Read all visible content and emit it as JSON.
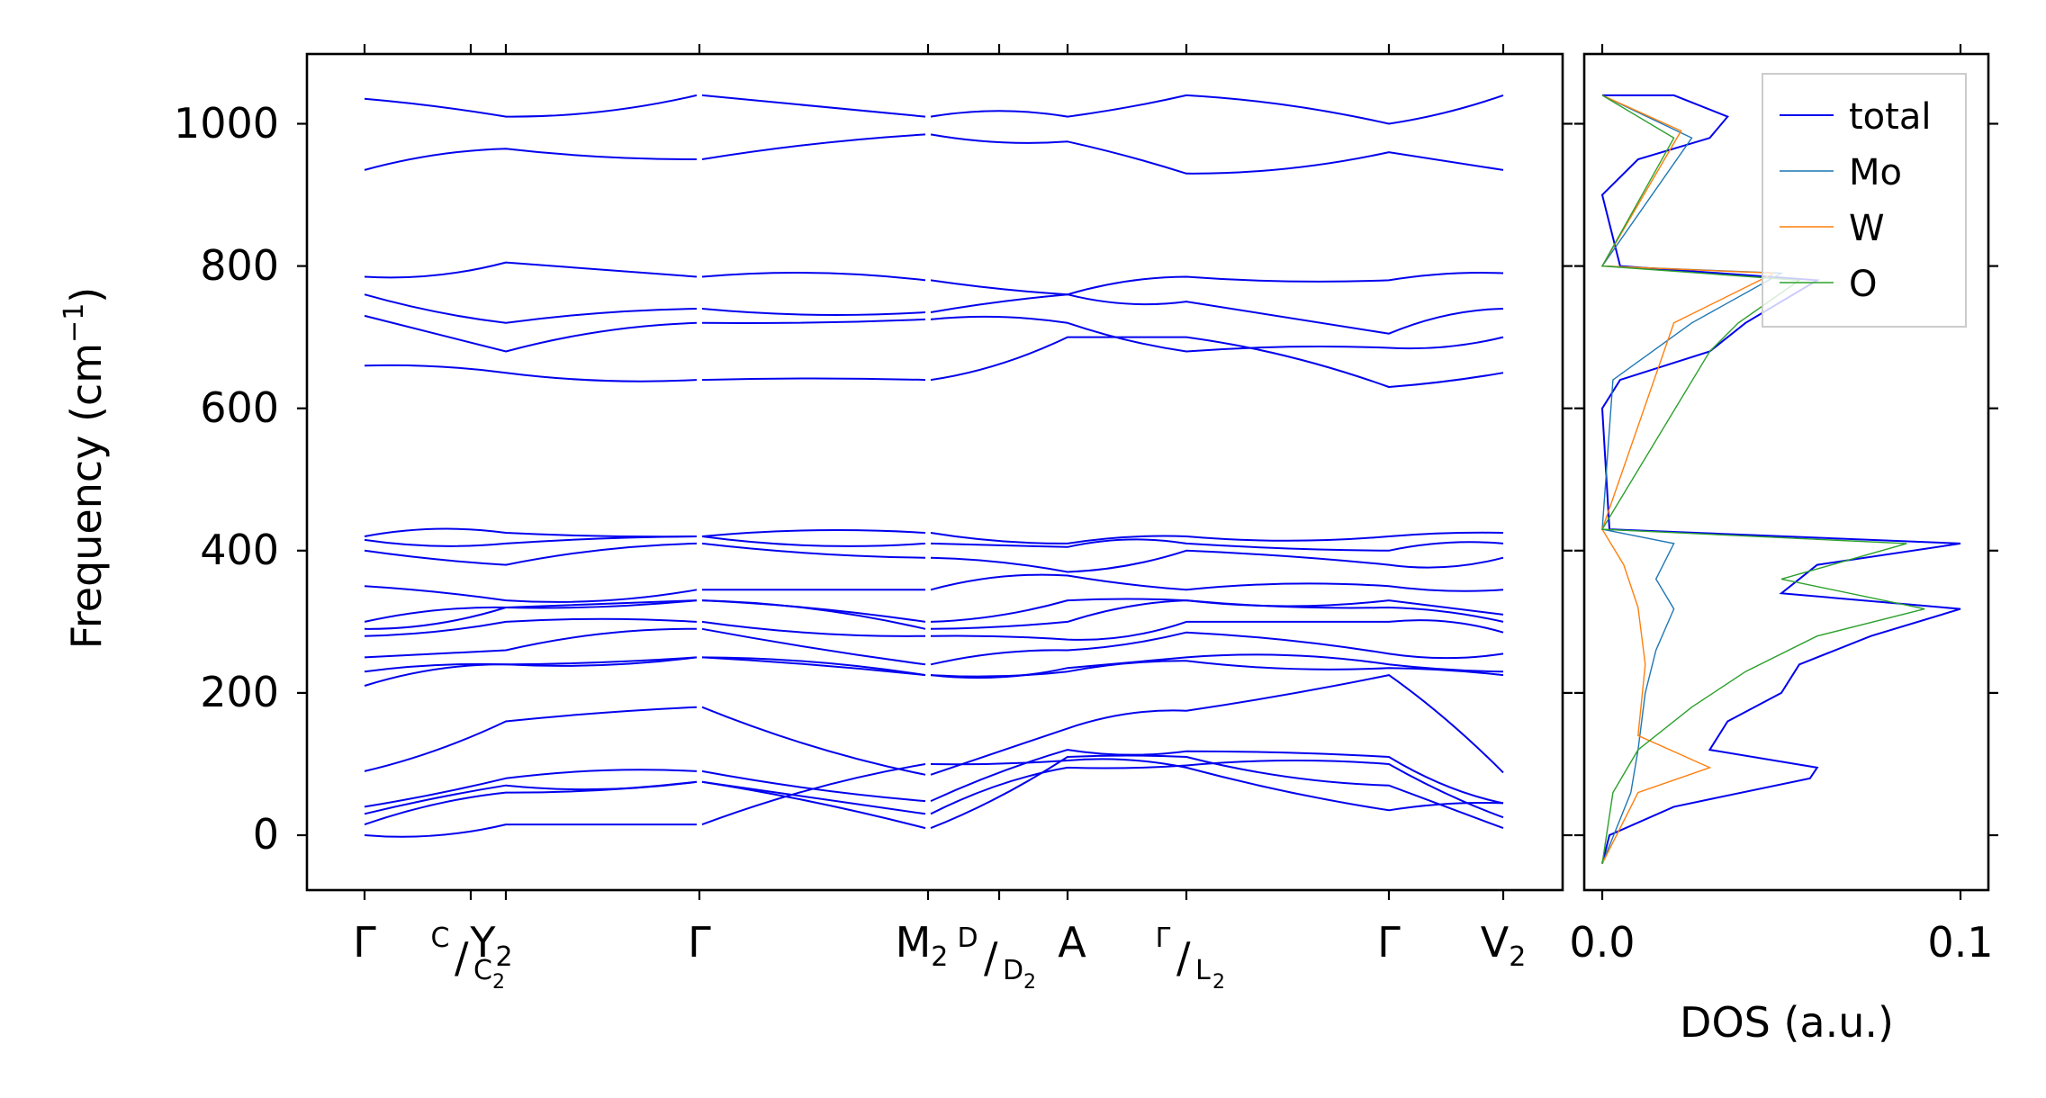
{
  "chart_data": [
    {
      "type": "line",
      "ylabel_main": "Frequency (cm",
      "ylabel_sup": "−1",
      "ylabel_close": ")",
      "ylim": [
        -75,
        1095
      ],
      "yticks": [
        "0",
        "200",
        "400",
        "600",
        "800",
        "1000"
      ],
      "ytick_values": [
        0,
        200,
        400,
        600,
        800,
        1000
      ],
      "xtick_labels": [
        "Γ",
        "Y",
        "Γ",
        "M",
        "A",
        "Γ",
        "V"
      ],
      "xtick_subs": [
        "",
        "2",
        "",
        "2",
        "",
        "",
        "2"
      ],
      "split_labels": [
        {
          "top": "C",
          "bottom": "C",
          "sub": "2"
        },
        {
          "top": "D",
          "bottom": "D",
          "sub": "2"
        },
        {
          "top": "Γ",
          "bottom": "L",
          "sub": "2"
        }
      ],
      "band_color": "#0000ee",
      "series_count": 36
    },
    {
      "type": "line",
      "xlabel": "DOS (a.u.)",
      "xticks": [
        "0.0",
        "0.1"
      ],
      "xlim": [
        0,
        0.108
      ],
      "legend_position": "top-right",
      "series": [
        {
          "name": "total",
          "color": "#0000ee"
        },
        {
          "name": "Mo",
          "color": "#1f77b4"
        },
        {
          "name": "W",
          "color": "#ff7f0e"
        },
        {
          "name": "O",
          "color": "#2ca02c"
        }
      ]
    }
  ]
}
